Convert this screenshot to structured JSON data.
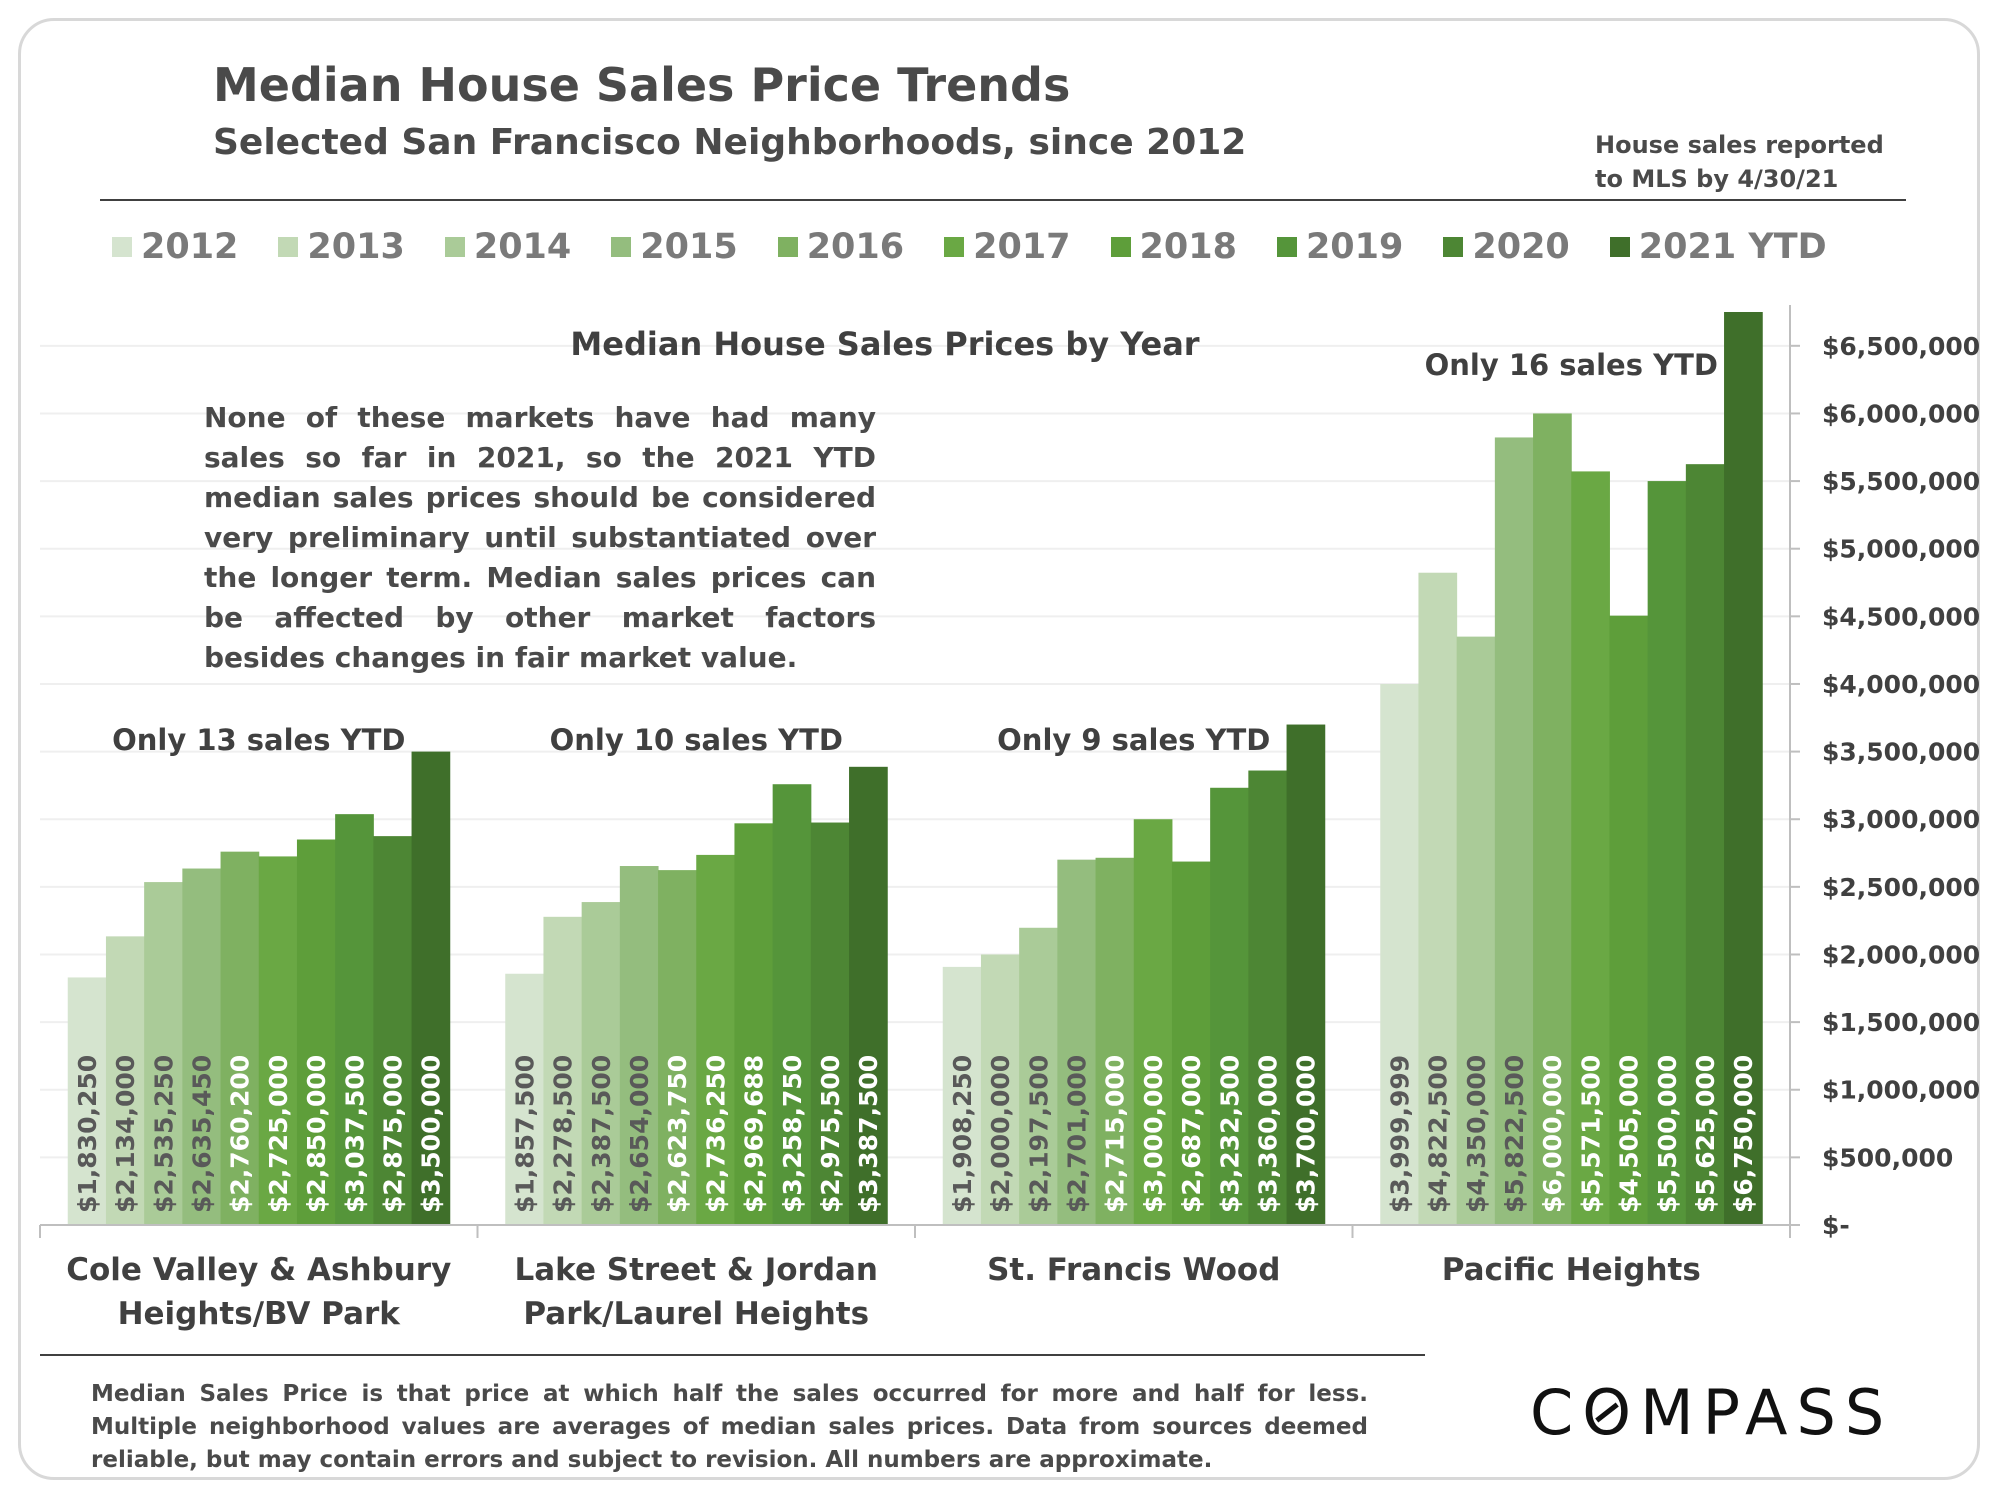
{
  "header": {
    "title": "Median House Sales Price Trends",
    "subtitle": "Selected San Francisco Neighborhoods, since 2012",
    "note_line1": "House sales reported",
    "note_line2": "to MLS by 4/30/21"
  },
  "explanation": "None of these markets have had many sales so far in 2021, so the 2021 YTD median sales prices should be considered very preliminary until substantiated over the longer term. Median sales prices can be affected by other market factors besides changes in fair market value.",
  "footnote": "Median Sales Price is that price at which half the sales occurred for more and half for less. Multiple neighborhood values are averages of median sales prices. Data from sources deemed reliable, but may contain errors and subject to revision.  All numbers are approximate.",
  "logo": "COMPASS",
  "colors": {
    "series": [
      "#d5e4cf",
      "#c2d9b5",
      "#aacb98",
      "#94bd7e",
      "#7fb161",
      "#6aa844",
      "#5e9e3a",
      "#55953a",
      "#4d8634",
      "#3f6f2a"
    ],
    "axis": "#bfbfbf",
    "gridline": "#efefef",
    "text": "#404040"
  },
  "chart_data": {
    "type": "bar",
    "title": "Median House Sales Prices by Year",
    "categories": [
      [
        "Cole Valley & Ashbury",
        "Heights/BV Park"
      ],
      [
        "Lake Street & Jordan",
        "Park/Laurel Heights"
      ],
      [
        "St. Francis Wood"
      ],
      [
        "Pacific Heights"
      ]
    ],
    "series": [
      {
        "name": "2012",
        "values": [
          1830250,
          1857500,
          1908250,
          3999999
        ],
        "labels": [
          "$1,830,250",
          "$1,857,500",
          "$1,908,250",
          "$3,999,999"
        ]
      },
      {
        "name": "2013",
        "values": [
          2134000,
          2278500,
          2000000,
          4822500
        ],
        "labels": [
          "$2,134,000",
          "$2,278,500",
          "$2,000,000",
          "$4,822,500"
        ]
      },
      {
        "name": "2014",
        "values": [
          2535250,
          2387500,
          2197500,
          4350000
        ],
        "labels": [
          "$2,535,250",
          "$2,387,500",
          "$2,197,500",
          "$4,350,000"
        ]
      },
      {
        "name": "2015",
        "values": [
          2635450,
          2654000,
          2701000,
          5822500
        ],
        "labels": [
          "$2,635,450",
          "$2,654,000",
          "$2,701,000",
          "$5,822,500"
        ]
      },
      {
        "name": "2016",
        "values": [
          2760200,
          2623750,
          2715000,
          6000000
        ],
        "labels": [
          "$2,760,200",
          "$2,623,750",
          "$2,715,000",
          "$6,000,000"
        ]
      },
      {
        "name": "2017",
        "values": [
          2725000,
          2736250,
          3000000,
          5571500
        ],
        "labels": [
          "$2,725,000",
          "$2,736,250",
          "$3,000,000",
          "$5,571,500"
        ]
      },
      {
        "name": "2018",
        "values": [
          2850000,
          2969688,
          2687000,
          4505000
        ],
        "labels": [
          "$2,850,000",
          "$2,969,688",
          "$2,687,000",
          "$4,505,000"
        ]
      },
      {
        "name": "2019",
        "values": [
          3037500,
          3258750,
          3232500,
          5500000
        ],
        "labels": [
          "$3,037,500",
          "$3,258,750",
          "$3,232,500",
          "$5,500,000"
        ]
      },
      {
        "name": "2020",
        "values": [
          2875000,
          2975500,
          3360000,
          5625000
        ],
        "labels": [
          "$2,875,000",
          "$2,975,500",
          "$3,360,000",
          "$5,625,000"
        ]
      },
      {
        "name": "2021 YTD",
        "values": [
          3500000,
          3387500,
          3700000,
          6750000
        ],
        "labels": [
          "$3,500,000",
          "$3,387,500",
          "$3,700,000",
          "$6,750,000"
        ]
      }
    ],
    "annotations": [
      "Only 13 sales YTD",
      "Only 10 sales YTD",
      "Only 9 sales YTD",
      "Only 16 sales YTD"
    ],
    "ylim": [
      0,
      6750000
    ],
    "y_ticks": [
      0,
      500000,
      1000000,
      1500000,
      2000000,
      2500000,
      3000000,
      3500000,
      4000000,
      4500000,
      5000000,
      5500000,
      6000000,
      6500000
    ],
    "y_tick_labels": [
      "$-",
      "$500,000",
      "$1,000,000",
      "$1,500,000",
      "$2,000,000",
      "$2,500,000",
      "$3,000,000",
      "$3,500,000",
      "$4,000,000",
      "$4,500,000",
      "$5,000,000",
      "$5,500,000",
      "$6,000,000",
      "$6,500,000"
    ],
    "yaxis_position": "right",
    "legend_position": "top",
    "grid": true
  }
}
